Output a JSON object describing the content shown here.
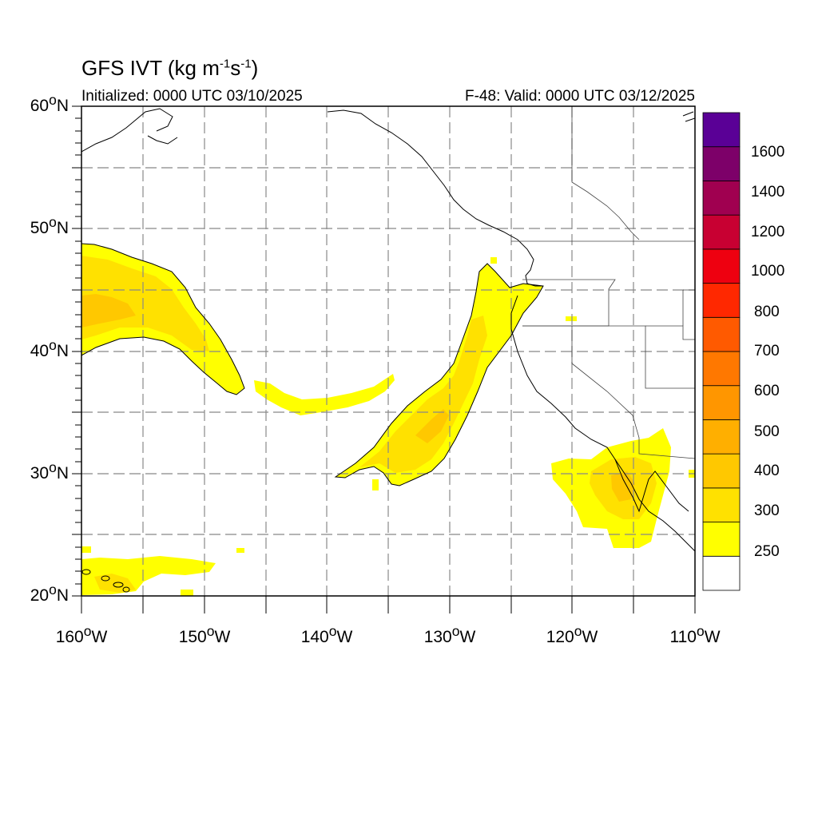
{
  "title": {
    "text": "GFS IVT (kg m",
    "unit_exp1": "-1",
    "mid": "s",
    "unit_exp2": "-1",
    "close": ")"
  },
  "subtitle_left": "Initialized: 0000 UTC 03/10/2025",
  "subtitle_right": "F-48: Valid: 0000 UTC 03/12/2025",
  "lat_labels": [
    {
      "deg": "60",
      "hemi": "N"
    },
    {
      "deg": "50",
      "hemi": "N"
    },
    {
      "deg": "40",
      "hemi": "N"
    },
    {
      "deg": "30",
      "hemi": "N"
    },
    {
      "deg": "20",
      "hemi": "N"
    }
  ],
  "lon_labels": [
    {
      "deg": "160",
      "hemi": "W"
    },
    {
      "deg": "150",
      "hemi": "W"
    },
    {
      "deg": "140",
      "hemi": "W"
    },
    {
      "deg": "130",
      "hemi": "W"
    },
    {
      "deg": "120",
      "hemi": "W"
    },
    {
      "deg": "110",
      "hemi": "W"
    }
  ],
  "colorbar": {
    "labels": [
      "1600",
      "1400",
      "1200",
      "1000",
      "800",
      "700",
      "600",
      "500",
      "400",
      "300",
      "250"
    ],
    "colors_bottom_to_top": [
      "#ffffff",
      "#ffff00",
      "#ffe100",
      "#ffc800",
      "#ffaf00",
      "#ff9600",
      "#ff7800",
      "#ff5a00",
      "#ff2800",
      "#ee0010",
      "#c80032",
      "#a00050",
      "#7d0069",
      "#5a0096"
    ]
  },
  "map_extent": {
    "lon_min": -160,
    "lon_max": -110,
    "lat_min": 20,
    "lat_max": 60
  },
  "colors": {
    "ivt_250": "#ffff00",
    "ivt_300": "#ffe100",
    "ivt_400": "#ffc800",
    "coast": "#000000",
    "grid": "#888888"
  }
}
